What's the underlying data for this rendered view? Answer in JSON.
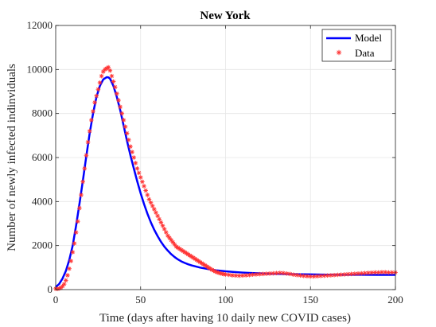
{
  "chart_data": {
    "type": "line",
    "title": "New York",
    "xlabel": "Time (days after having 10 daily new COVID cases)",
    "ylabel": "Number of newly infected indinviduals",
    "xlim": [
      0,
      200
    ],
    "ylim": [
      0,
      12000
    ],
    "xticks": [
      0,
      50,
      100,
      150,
      200
    ],
    "yticks": [
      0,
      2000,
      4000,
      6000,
      8000,
      10000,
      12000
    ],
    "grid": true,
    "legend_position": "top-right",
    "colors": {
      "model": "#0000ff",
      "data": "#ff3333",
      "axis": "#262626",
      "grid": "#e6e6e6"
    },
    "series": [
      {
        "name": "Model",
        "style": "line",
        "x": [
          0,
          2,
          4,
          6,
          8,
          10,
          12,
          14,
          16,
          18,
          20,
          22,
          24,
          26,
          28,
          30,
          31,
          32,
          34,
          36,
          38,
          40,
          42,
          44,
          46,
          48,
          50,
          52,
          54,
          56,
          58,
          60,
          62,
          64,
          66,
          68,
          70,
          72,
          74,
          76,
          78,
          80,
          85,
          90,
          95,
          100,
          105,
          110,
          115,
          120,
          125,
          130,
          140,
          150,
          160,
          170,
          180,
          190,
          200
        ],
        "y": [
          120,
          250,
          500,
          850,
          1350,
          2000,
          2900,
          3900,
          4950,
          6050,
          7100,
          8000,
          8750,
          9250,
          9550,
          9650,
          9640,
          9580,
          9250,
          8750,
          8150,
          7450,
          6750,
          6100,
          5500,
          4920,
          4380,
          3890,
          3450,
          3060,
          2720,
          2430,
          2170,
          1950,
          1770,
          1610,
          1480,
          1370,
          1280,
          1210,
          1150,
          1100,
          1000,
          930,
          870,
          830,
          800,
          775,
          755,
          740,
          725,
          715,
          700,
          690,
          680,
          675,
          672,
          670,
          670
        ]
      },
      {
        "name": "Data",
        "style": "marker",
        "x": [
          0,
          1,
          2,
          3,
          4,
          5,
          6,
          7,
          8,
          9,
          10,
          11,
          12,
          13,
          14,
          15,
          16,
          17,
          18,
          19,
          20,
          21,
          22,
          23,
          24,
          25,
          26,
          27,
          28,
          29,
          30,
          31,
          32,
          33,
          34,
          35,
          36,
          37,
          38,
          39,
          40,
          41,
          42,
          43,
          44,
          45,
          46,
          47,
          48,
          49,
          50,
          51,
          52,
          53,
          54,
          55,
          56,
          57,
          58,
          59,
          60,
          61,
          62,
          63,
          64,
          65,
          66,
          67,
          68,
          69,
          70,
          71,
          72,
          73,
          74,
          75,
          76,
          77,
          78,
          79,
          80,
          81,
          82,
          83,
          84,
          85,
          86,
          87,
          88,
          89,
          90,
          91,
          92,
          93,
          94,
          95,
          96,
          97,
          98,
          99,
          100,
          102,
          104,
          106,
          108,
          110,
          112,
          114,
          116,
          118,
          120,
          122,
          124,
          126,
          128,
          130,
          132,
          134,
          136,
          138,
          140,
          142,
          144,
          146,
          148,
          150,
          152,
          154,
          156,
          158,
          160,
          162,
          164,
          166,
          168,
          170,
          172,
          174,
          176,
          178,
          180,
          182,
          184,
          186,
          188,
          190,
          192,
          194,
          196,
          198,
          200
        ],
        "y": [
          40,
          30,
          50,
          80,
          150,
          250,
          420,
          650,
          950,
          1300,
          1700,
          2100,
          2600,
          3100,
          3700,
          4300,
          4900,
          5500,
          6100,
          6700,
          7200,
          7700,
          8100,
          8500,
          8800,
          9100,
          9400,
          9700,
          9900,
          10000,
          10050,
          10100,
          9950,
          9700,
          9450,
          9200,
          8900,
          8600,
          8300,
          8000,
          7700,
          7400,
          7100,
          6800,
          6500,
          6250,
          6000,
          5750,
          5500,
          5300,
          5100,
          4900,
          4700,
          4500,
          4300,
          4100,
          3950,
          3800,
          3650,
          3500,
          3350,
          3200,
          3050,
          2900,
          2750,
          2600,
          2450,
          2350,
          2250,
          2150,
          2050,
          1950,
          1900,
          1850,
          1800,
          1750,
          1700,
          1650,
          1600,
          1550,
          1500,
          1450,
          1400,
          1350,
          1300,
          1250,
          1200,
          1150,
          1100,
          1050,
          1000,
          950,
          900,
          860,
          820,
          790,
          760,
          740,
          720,
          700,
          690,
          670,
          650,
          640,
          630,
          640,
          650,
          660,
          680,
          690,
          700,
          710,
          720,
          730,
          740,
          750,
          760,
          750,
          730,
          710,
          680,
          660,
          640,
          620,
          610,
          600,
          600,
          610,
          620,
          630,
          640,
          650,
          660,
          670,
          680,
          690,
          700,
          710,
          720,
          730,
          740,
          750,
          760,
          770,
          780,
          780,
          790,
          790,
          780,
          780,
          780
        ]
      }
    ]
  }
}
